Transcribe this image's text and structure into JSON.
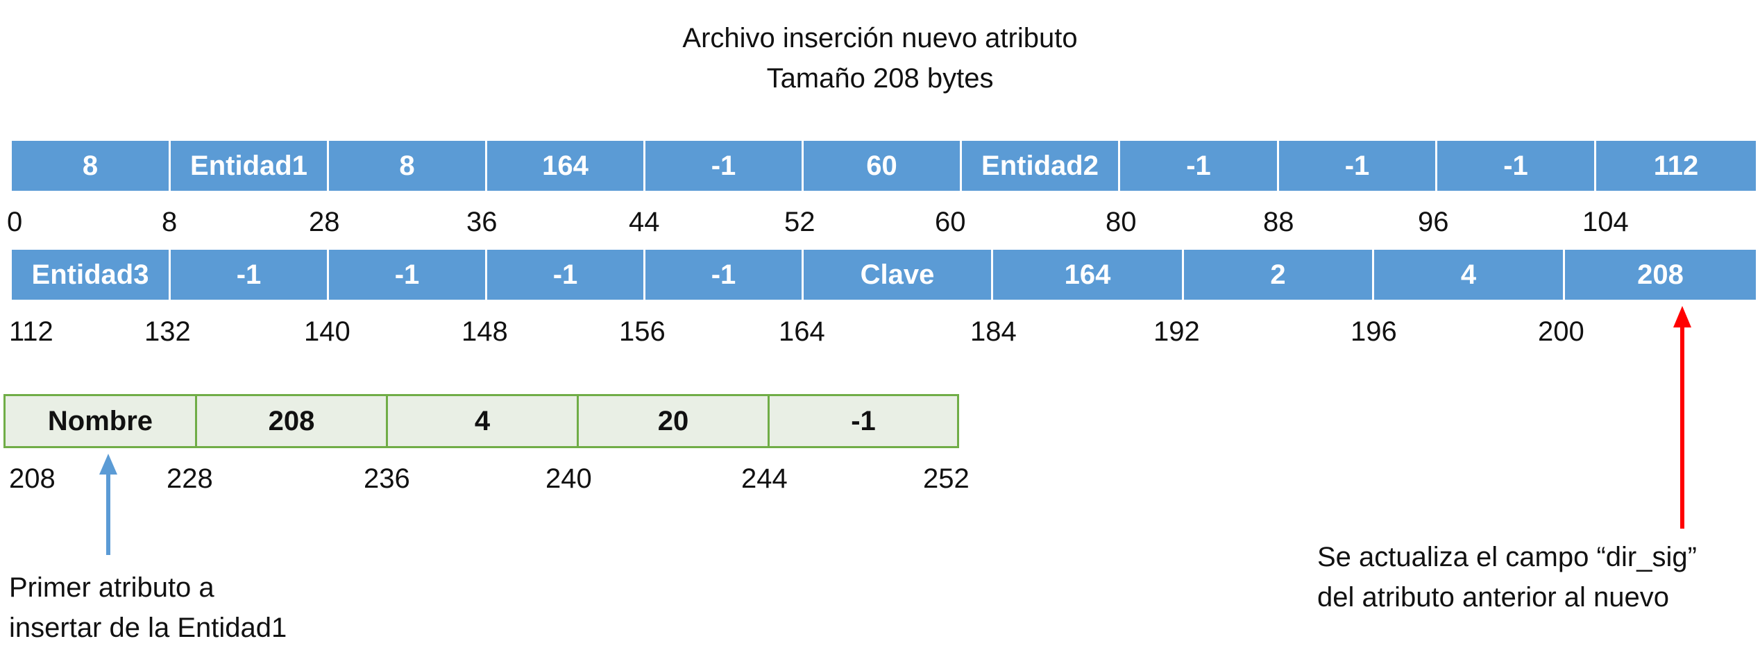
{
  "title": {
    "line1": "Archivo inserción nuevo atributo",
    "line2": "Tamaño 208 bytes"
  },
  "row1": {
    "cells": [
      "8",
      "Entidad1",
      "8",
      "164",
      "-1",
      "60",
      "Entidad2",
      "-1",
      "-1",
      "-1",
      "112"
    ],
    "offsets": [
      "0",
      "8",
      "28",
      "36",
      "44",
      "52",
      "60",
      "80",
      "88",
      "96",
      "104"
    ]
  },
  "row2": {
    "cells": [
      "Entidad3",
      "-1",
      "-1",
      "-1",
      "-1",
      "Clave",
      "164",
      "2",
      "4",
      "208"
    ],
    "offsets": [
      "112",
      "132",
      "140",
      "148",
      "156",
      "164",
      "184",
      "192",
      "196",
      "200"
    ]
  },
  "row3": {
    "cells": [
      "Nombre",
      "208",
      "4",
      "20",
      "-1"
    ],
    "offsets": [
      "208",
      "228",
      "236",
      "240",
      "244",
      "252"
    ]
  },
  "notes": {
    "left": [
      "Primer atributo a",
      "insertar de la Entidad1"
    ],
    "right": [
      "Se actualiza el campo “dir_sig”",
      "del atributo anterior al nuevo"
    ]
  },
  "colors": {
    "blue_row": "#5b9bd5",
    "green_border": "#70ad47",
    "green_fill": "#e9efe5",
    "red_arrow": "#ff0000",
    "blue_arrow": "#5b9bd5"
  }
}
